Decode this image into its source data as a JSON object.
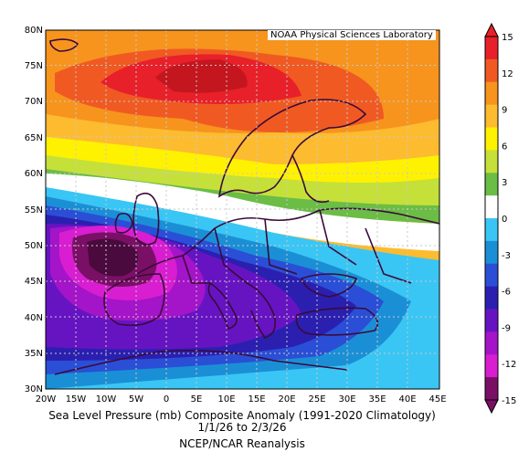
{
  "credit": "NOAA Physical Sciences Laboratory",
  "title_line1": "Sea Level Pressure (mb) Composite Anomaly (1991-2020 Climatology)",
  "title_line2": "1/1/26   to 2/3/26",
  "title_line3": "NCEP/NCAR Reanalysis",
  "lat_labels": [
    "80N",
    "75N",
    "70N",
    "65N",
    "60N",
    "55N",
    "50N",
    "45N",
    "40N",
    "35N",
    "30N"
  ],
  "lon_labels": [
    "20W",
    "15W",
    "10W",
    "5W",
    "0",
    "5E",
    "10E",
    "15E",
    "20E",
    "25E",
    "30E",
    "35E",
    "40E",
    "45E"
  ],
  "colorbar": {
    "labels": [
      "15",
      "12",
      "9",
      "6",
      "3",
      "0",
      "-3",
      "-6",
      "-9",
      "-12",
      "-15"
    ],
    "colors": [
      "#e8202a",
      "#f05a22",
      "#f7941d",
      "#fdbb2f",
      "#fff200",
      "#c6e03a",
      "#6bbd45",
      "#ffffff",
      "#39c6f4",
      "#1b8fd6",
      "#2a4fd6",
      "#2b1fb0",
      "#6614c2",
      "#a414c8",
      "#d81ed0",
      "#7a0f66"
    ]
  },
  "field": {
    "description_levels": [
      -15,
      -12,
      -9,
      -6,
      -3,
      0,
      3,
      6,
      9,
      12,
      15
    ]
  }
}
